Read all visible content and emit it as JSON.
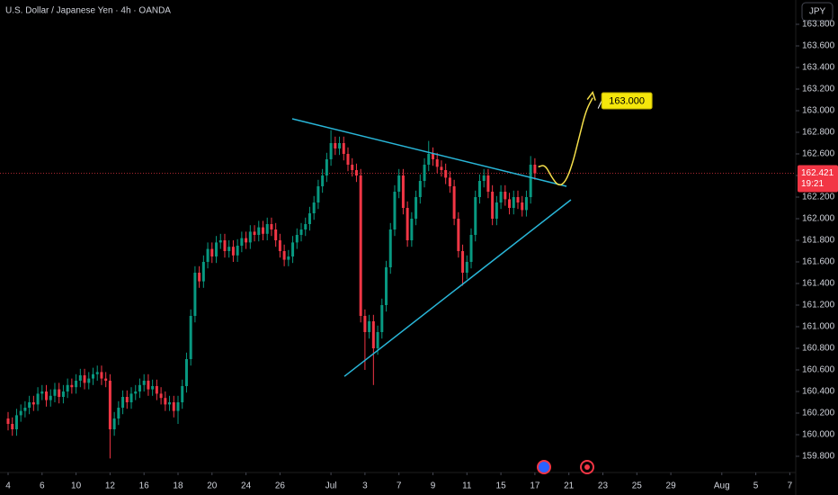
{
  "chart_data": {
    "type": "candlestick",
    "title": "U.S. Dollar / Japanese Yen · 4h · OANDA",
    "currency_button": "JPY",
    "up_color": "#089981",
    "down_color": "#f23645",
    "xlim": [
      -0.476,
      46.35
    ],
    "ylim": [
      159.65,
      164.025
    ],
    "yticks": [
      {
        "value": 159.8,
        "label": "159.800"
      },
      {
        "value": 160,
        "label": "160.000"
      },
      {
        "value": 160.2,
        "label": "160.200"
      },
      {
        "value": 160.4,
        "label": "160.400"
      },
      {
        "value": 160.6,
        "label": "160.600"
      },
      {
        "value": 160.8,
        "label": "160.800"
      },
      {
        "value": 161,
        "label": "161.000"
      },
      {
        "value": 161.2,
        "label": "161.200"
      },
      {
        "value": 161.4,
        "label": "161.400"
      },
      {
        "value": 161.6,
        "label": "161.600"
      },
      {
        "value": 161.8,
        "label": "161.800"
      },
      {
        "value": 162,
        "label": "162.000"
      },
      {
        "value": 162.2,
        "label": "162.200"
      },
      {
        "value": 162.4,
        "label": "162.400"
      },
      {
        "value": 162.6,
        "label": "162.600"
      },
      {
        "value": 162.8,
        "label": "162.800"
      },
      {
        "value": 163,
        "label": "163.000"
      },
      {
        "value": 163.2,
        "label": "163.200"
      },
      {
        "value": 163.4,
        "label": "163.400"
      },
      {
        "value": 163.6,
        "label": "163.600"
      },
      {
        "value": 163.8,
        "label": "163.800"
      }
    ],
    "xticks": [
      {
        "value": 0,
        "label": "4"
      },
      {
        "value": 2,
        "label": "6"
      },
      {
        "value": 4,
        "label": "10"
      },
      {
        "value": 6,
        "label": "12"
      },
      {
        "value": 8,
        "label": "16"
      },
      {
        "value": 10,
        "label": "18"
      },
      {
        "value": 12,
        "label": "20"
      },
      {
        "value": 14,
        "label": "24"
      },
      {
        "value": 16,
        "label": "26"
      },
      {
        "value": 19,
        "label": "Jul"
      },
      {
        "value": 21,
        "label": "3"
      },
      {
        "value": 23,
        "label": "7"
      },
      {
        "value": 25,
        "label": "9"
      },
      {
        "value": 27,
        "label": "11"
      },
      {
        "value": 29,
        "label": "15"
      },
      {
        "value": 31,
        "label": "17"
      },
      {
        "value": 33,
        "label": "21"
      },
      {
        "value": 35,
        "label": "23"
      },
      {
        "value": 37,
        "label": "25"
      },
      {
        "value": 39,
        "label": "29"
      },
      {
        "value": 42,
        "label": "Aug"
      },
      {
        "value": 44,
        "label": "5"
      },
      {
        "value": 46,
        "label": "7"
      }
    ],
    "x": [
      0,
      0.25,
      0.5,
      0.75,
      1,
      1.25,
      1.5,
      1.75,
      2,
      2.25,
      2.5,
      2.75,
      3,
      3.25,
      3.5,
      3.75,
      4,
      4.25,
      4.5,
      4.75,
      5,
      5.25,
      5.5,
      5.75,
      6,
      6.25,
      6.5,
      6.75,
      7,
      7.25,
      7.5,
      7.75,
      8,
      8.25,
      8.5,
      8.75,
      9,
      9.25,
      9.5,
      9.75,
      10,
      10.25,
      10.5,
      10.75,
      11,
      11.25,
      11.5,
      11.75,
      12,
      12.25,
      12.5,
      12.75,
      13,
      13.25,
      13.5,
      13.75,
      14,
      14.25,
      14.5,
      14.75,
      15,
      15.25,
      15.5,
      15.75,
      16,
      16.25,
      16.5,
      16.75,
      17,
      17.25,
      17.5,
      17.75,
      18,
      18.25,
      18.5,
      18.75,
      19,
      19.25,
      19.5,
      19.75,
      20,
      20.25,
      20.5,
      20.75,
      21,
      21.25,
      21.5,
      21.75,
      22,
      22.25,
      22.5,
      22.75,
      23,
      23.25,
      23.5,
      23.75,
      24,
      24.25,
      24.5,
      24.75,
      25,
      25.25,
      25.5,
      25.75,
      26,
      26.25,
      26.5,
      26.75,
      27,
      27.25,
      27.5,
      27.75,
      28,
      28.25,
      28.5,
      28.75,
      29,
      29.25,
      29.5,
      29.75,
      30,
      30.25,
      30.5,
      30.75,
      31
    ],
    "open": [
      160.15,
      160.1,
      160.05,
      160.18,
      160.22,
      160.25,
      160.3,
      160.28,
      160.38,
      160.4,
      160.32,
      160.36,
      160.42,
      160.35,
      160.4,
      160.46,
      160.44,
      160.5,
      160.55,
      160.48,
      160.52,
      160.56,
      160.58,
      160.52,
      160.5,
      160.05,
      160.15,
      160.25,
      160.35,
      160.3,
      160.38,
      160.4,
      160.46,
      160.5,
      160.42,
      160.45,
      160.38,
      160.34,
      160.28,
      160.3,
      160.22,
      160.3,
      160.45,
      160.7,
      161.1,
      161.5,
      161.42,
      161.6,
      161.72,
      161.65,
      161.78,
      161.8,
      161.7,
      161.74,
      161.66,
      161.75,
      161.82,
      161.78,
      161.88,
      161.85,
      161.92,
      161.86,
      161.95,
      161.9,
      161.8,
      161.7,
      161.62,
      161.65,
      161.78,
      161.85,
      161.9,
      161.95,
      162.05,
      162.15,
      162.3,
      162.4,
      162.55,
      162.7,
      162.65,
      162.7,
      162.6,
      162.5,
      162.45,
      162.4,
      161.1,
      160.95,
      161.05,
      160.8,
      160.95,
      161.2,
      161.55,
      161.9,
      162.25,
      162.4,
      162.1,
      161.8,
      162.0,
      162.2,
      162.35,
      162.5,
      162.6,
      162.55,
      162.48,
      162.45,
      162.38,
      162.3,
      162.0,
      161.7,
      161.5,
      161.6,
      161.85,
      162.2,
      162.35,
      162.4,
      162.25,
      162.0,
      162.15,
      162.25,
      162.18,
      162.1,
      162.2,
      162.15,
      162.08,
      162.2,
      162.5
    ],
    "high": [
      160.21,
      160.16,
      160.24,
      160.28,
      160.31,
      160.36,
      160.36,
      160.44,
      160.46,
      160.46,
      160.42,
      160.48,
      160.48,
      160.46,
      160.52,
      160.52,
      160.56,
      160.61,
      160.61,
      160.58,
      160.62,
      160.64,
      160.64,
      160.58,
      160.56,
      160.21,
      160.31,
      160.41,
      160.41,
      160.44,
      160.46,
      160.52,
      160.56,
      160.56,
      160.51,
      160.51,
      160.44,
      160.4,
      160.36,
      160.36,
      160.36,
      160.51,
      160.76,
      161.16,
      161.56,
      161.56,
      161.66,
      161.78,
      161.78,
      161.84,
      161.86,
      161.86,
      161.8,
      161.8,
      161.81,
      161.88,
      161.88,
      161.94,
      161.94,
      161.98,
      161.98,
      162.01,
      162.01,
      161.96,
      161.86,
      161.76,
      161.71,
      161.84,
      161.91,
      161.96,
      162.01,
      162.11,
      162.21,
      162.36,
      162.46,
      162.61,
      162.82,
      162.76,
      162.76,
      162.76,
      162.66,
      162.56,
      162.51,
      162.46,
      161.16,
      161.11,
      161.11,
      161.01,
      161.26,
      161.61,
      161.96,
      162.31,
      162.46,
      162.46,
      162.16,
      162.06,
      162.26,
      162.41,
      162.56,
      162.72,
      162.66,
      162.61,
      162.54,
      162.51,
      162.44,
      162.36,
      162.06,
      161.76,
      161.66,
      161.91,
      162.26,
      162.41,
      162.46,
      162.46,
      162.31,
      162.21,
      162.31,
      162.31,
      162.24,
      162.26,
      162.26,
      162.21,
      162.26,
      162.58,
      162.56
    ],
    "low": [
      160.04,
      159.99,
      159.99,
      160.12,
      160.16,
      160.19,
      160.22,
      160.22,
      160.32,
      160.26,
      160.26,
      160.3,
      160.29,
      160.29,
      160.34,
      160.38,
      160.38,
      160.44,
      160.42,
      160.42,
      160.46,
      160.5,
      160.46,
      160.44,
      159.78,
      159.99,
      160.09,
      160.19,
      160.24,
      160.24,
      160.32,
      160.34,
      160.4,
      160.36,
      160.36,
      160.32,
      160.28,
      160.22,
      160.22,
      160.16,
      160.1,
      160.24,
      160.39,
      160.64,
      161.04,
      161.36,
      161.36,
      161.54,
      161.59,
      161.59,
      161.72,
      161.64,
      161.64,
      161.6,
      161.6,
      161.69,
      161.72,
      161.72,
      161.79,
      161.79,
      161.8,
      161.8,
      161.84,
      161.74,
      161.64,
      161.56,
      161.56,
      161.59,
      161.72,
      161.79,
      161.84,
      161.89,
      161.99,
      162.09,
      162.24,
      162.34,
      162.49,
      162.59,
      162.59,
      162.54,
      162.44,
      162.39,
      162.34,
      161.04,
      160.6,
      160.89,
      160.46,
      160.74,
      160.89,
      161.14,
      161.49,
      161.84,
      162.19,
      162.04,
      161.74,
      161.74,
      161.94,
      162.14,
      162.29,
      162.44,
      162.49,
      162.42,
      162.39,
      162.32,
      162.24,
      161.94,
      161.64,
      161.38,
      161.44,
      161.54,
      161.79,
      162.14,
      162.29,
      162.19,
      161.94,
      161.94,
      162.09,
      162.12,
      162.04,
      162.04,
      162.09,
      162.02,
      162.02,
      162.14,
      162.36
    ],
    "close": [
      160.1,
      160.05,
      160.18,
      160.22,
      160.25,
      160.3,
      160.28,
      160.38,
      160.4,
      160.32,
      160.36,
      160.42,
      160.35,
      160.4,
      160.46,
      160.44,
      160.5,
      160.55,
      160.48,
      160.52,
      160.56,
      160.58,
      160.52,
      160.5,
      160.05,
      160.15,
      160.25,
      160.35,
      160.3,
      160.38,
      160.4,
      160.46,
      160.5,
      160.42,
      160.45,
      160.38,
      160.34,
      160.28,
      160.3,
      160.22,
      160.3,
      160.45,
      160.7,
      161.1,
      161.5,
      161.42,
      161.6,
      161.72,
      161.65,
      161.78,
      161.8,
      161.7,
      161.74,
      161.66,
      161.75,
      161.82,
      161.78,
      161.88,
      161.85,
      161.92,
      161.86,
      161.95,
      161.9,
      161.8,
      161.7,
      161.62,
      161.65,
      161.78,
      161.85,
      161.9,
      161.95,
      162.05,
      162.15,
      162.3,
      162.4,
      162.55,
      162.7,
      162.65,
      162.7,
      162.6,
      162.5,
      162.45,
      162.4,
      161.1,
      160.95,
      161.05,
      160.8,
      160.95,
      161.2,
      161.55,
      161.9,
      162.25,
      162.4,
      162.1,
      161.8,
      162.0,
      162.2,
      162.35,
      162.5,
      162.6,
      162.55,
      162.48,
      162.45,
      162.38,
      162.3,
      162.0,
      161.7,
      161.5,
      161.6,
      161.85,
      162.2,
      162.35,
      162.4,
      162.25,
      162.0,
      162.15,
      162.25,
      162.18,
      162.1,
      162.2,
      162.15,
      162.08,
      162.2,
      162.5,
      162.42
    ],
    "last_price": 162.421,
    "countdown": "19:21",
    "trendlines": [
      {
        "color": "#29b6d8",
        "x": [
          16.72,
          32.86
        ],
        "y": [
          162.925,
          162.3
        ]
      },
      {
        "color": "#29b6d8",
        "x": [
          19.79,
          33.12
        ],
        "y": [
          160.54,
          162.175
        ]
      }
    ],
    "projection": {
      "color": "#f7e14b",
      "x": [
        31.2,
        31.6,
        32.0,
        32.4,
        32.8,
        33.2,
        33.6,
        34.0,
        34.4
      ],
      "y": [
        162.48,
        162.5,
        162.38,
        162.3,
        162.34,
        162.5,
        162.75,
        163.0,
        163.12
      ]
    },
    "target": {
      "value": 163,
      "label": "163.000"
    }
  }
}
